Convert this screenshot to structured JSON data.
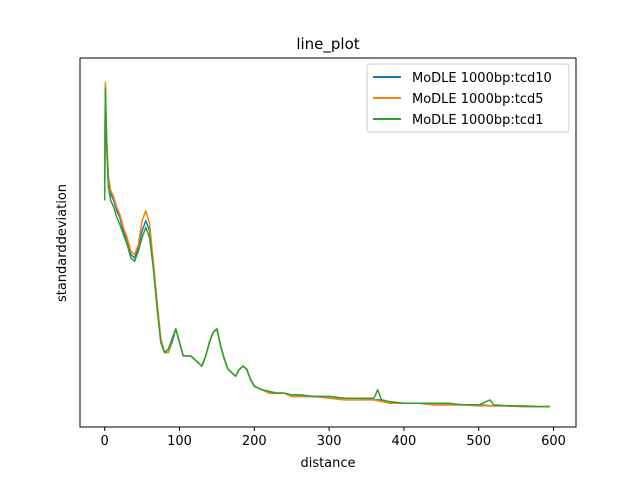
{
  "chart_data": {
    "type": "line",
    "title": "line_plot",
    "xlabel": "distance",
    "ylabel": "standarddeviation",
    "xlim": [
      -33,
      630
    ],
    "ylim": [
      0.0,
      1.0
    ],
    "xticks": [
      0,
      100,
      200,
      300,
      400,
      500,
      600
    ],
    "yticks_visible": false,
    "grid": false,
    "legend_position": "top-right",
    "series": [
      {
        "name": "MoDLE 1000bp:tcd10",
        "color": "#1f77b4",
        "x": [
          0,
          1,
          2,
          3,
          5,
          8,
          12,
          16,
          20,
          25,
          30,
          35,
          40,
          45,
          50,
          55,
          60,
          65,
          70,
          75,
          80,
          85,
          90,
          95,
          100,
          105,
          110,
          115,
          120,
          125,
          130,
          135,
          140,
          145,
          150,
          155,
          160,
          165,
          170,
          175,
          180,
          185,
          190,
          195,
          200,
          210,
          220,
          230,
          240,
          250,
          260,
          280,
          300,
          320,
          340,
          360,
          370,
          380,
          400,
          420,
          440,
          460,
          480,
          500,
          520,
          540,
          560,
          580,
          595
        ],
        "values": [
          0.68,
          0.96,
          0.84,
          0.78,
          0.68,
          0.64,
          0.62,
          0.59,
          0.57,
          0.53,
          0.5,
          0.46,
          0.45,
          0.48,
          0.53,
          0.56,
          0.53,
          0.43,
          0.31,
          0.21,
          0.17,
          0.17,
          0.2,
          0.24,
          0.2,
          0.16,
          0.16,
          0.16,
          0.15,
          0.14,
          0.13,
          0.16,
          0.2,
          0.23,
          0.24,
          0.19,
          0.15,
          0.12,
          0.11,
          0.1,
          0.12,
          0.13,
          0.12,
          0.09,
          0.07,
          0.06,
          0.05,
          0.05,
          0.05,
          0.04,
          0.04,
          0.04,
          0.04,
          0.035,
          0.035,
          0.03,
          0.03,
          0.025,
          0.02,
          0.02,
          0.015,
          0.015,
          0.015,
          0.015,
          0.012,
          0.012,
          0.01,
          0.01,
          0.01
        ]
      },
      {
        "name": "MoDLE 1000bp:tcd5",
        "color": "#ff7f0e",
        "x": [
          0,
          1,
          2,
          3,
          5,
          8,
          12,
          16,
          20,
          25,
          30,
          35,
          40,
          45,
          50,
          55,
          60,
          65,
          70,
          75,
          80,
          85,
          90,
          95,
          100,
          105,
          110,
          115,
          120,
          125,
          130,
          135,
          140,
          145,
          150,
          155,
          160,
          165,
          170,
          175,
          180,
          185,
          190,
          195,
          200,
          210,
          220,
          230,
          240,
          250,
          260,
          280,
          300,
          320,
          340,
          360,
          370,
          380,
          400,
          420,
          440,
          460,
          480,
          500,
          520,
          540,
          560,
          580,
          595
        ],
        "values": [
          0.7,
          0.97,
          0.85,
          0.79,
          0.69,
          0.65,
          0.63,
          0.6,
          0.58,
          0.54,
          0.51,
          0.47,
          0.46,
          0.49,
          0.56,
          0.59,
          0.55,
          0.44,
          0.32,
          0.21,
          0.17,
          0.17,
          0.21,
          0.24,
          0.2,
          0.16,
          0.16,
          0.16,
          0.15,
          0.14,
          0.13,
          0.16,
          0.2,
          0.23,
          0.24,
          0.19,
          0.15,
          0.12,
          0.11,
          0.1,
          0.12,
          0.13,
          0.12,
          0.09,
          0.07,
          0.06,
          0.05,
          0.05,
          0.05,
          0.04,
          0.04,
          0.04,
          0.035,
          0.03,
          0.03,
          0.03,
          0.025,
          0.02,
          0.02,
          0.02,
          0.015,
          0.015,
          0.015,
          0.012,
          0.012,
          0.012,
          0.01,
          0.01,
          0.01
        ]
      },
      {
        "name": "MoDLE 1000bp:tcd1",
        "color": "#2ca02c",
        "x": [
          0,
          1,
          2,
          3,
          5,
          8,
          12,
          16,
          20,
          25,
          30,
          35,
          40,
          45,
          50,
          55,
          60,
          65,
          70,
          75,
          80,
          85,
          90,
          95,
          100,
          105,
          110,
          115,
          120,
          125,
          130,
          135,
          140,
          145,
          150,
          155,
          160,
          165,
          170,
          175,
          180,
          185,
          190,
          195,
          200,
          210,
          220,
          230,
          240,
          250,
          260,
          280,
          300,
          320,
          340,
          360,
          365,
          370,
          380,
          400,
          420,
          440,
          460,
          480,
          500,
          515,
          520,
          540,
          560,
          580,
          595
        ],
        "values": [
          0.62,
          0.95,
          0.83,
          0.76,
          0.66,
          0.62,
          0.6,
          0.57,
          0.55,
          0.52,
          0.49,
          0.45,
          0.44,
          0.47,
          0.51,
          0.54,
          0.51,
          0.42,
          0.3,
          0.2,
          0.17,
          0.18,
          0.21,
          0.24,
          0.2,
          0.16,
          0.16,
          0.16,
          0.15,
          0.14,
          0.13,
          0.16,
          0.2,
          0.23,
          0.24,
          0.19,
          0.15,
          0.12,
          0.11,
          0.1,
          0.12,
          0.13,
          0.12,
          0.09,
          0.07,
          0.06,
          0.055,
          0.05,
          0.05,
          0.045,
          0.045,
          0.04,
          0.04,
          0.035,
          0.035,
          0.035,
          0.06,
          0.03,
          0.025,
          0.02,
          0.02,
          0.02,
          0.02,
          0.015,
          0.015,
          0.03,
          0.015,
          0.012,
          0.012,
          0.01,
          0.01
        ]
      }
    ]
  }
}
